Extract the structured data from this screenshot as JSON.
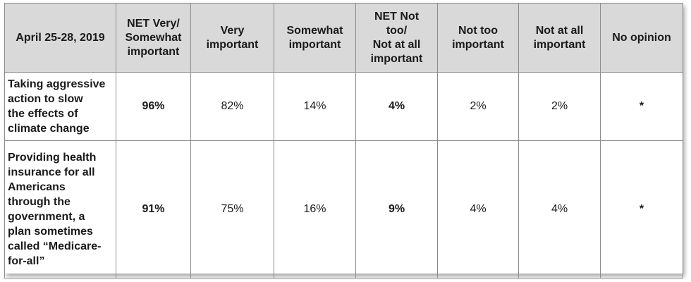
{
  "chart_data": {
    "type": "table",
    "header": {
      "date": "April 25-28, 2019",
      "columns": [
        "NET Very/\nSomewhat\nimportant",
        "Very\nimportant",
        "Somewhat\nimportant",
        "NET Not\ntoo/\nNot at all\nimportant",
        "Not too\nimportant",
        "Not at all\nimportant",
        "No opinion"
      ]
    },
    "rows": [
      {
        "label": "Taking aggressive\naction to slow\nthe effects of\nclimate change",
        "values": [
          "96%",
          "82%",
          "14%",
          "4%",
          "2%",
          "2%",
          "*"
        ]
      },
      {
        "label": "Providing health\ninsurance for all\nAmericans\nthrough the\ngovernment, a\nplan sometimes\ncalled “Medicare-\nfor-all”",
        "values": [
          "91%",
          "75%",
          "16%",
          "9%",
          "4%",
          "4%",
          "*"
        ]
      }
    ]
  }
}
